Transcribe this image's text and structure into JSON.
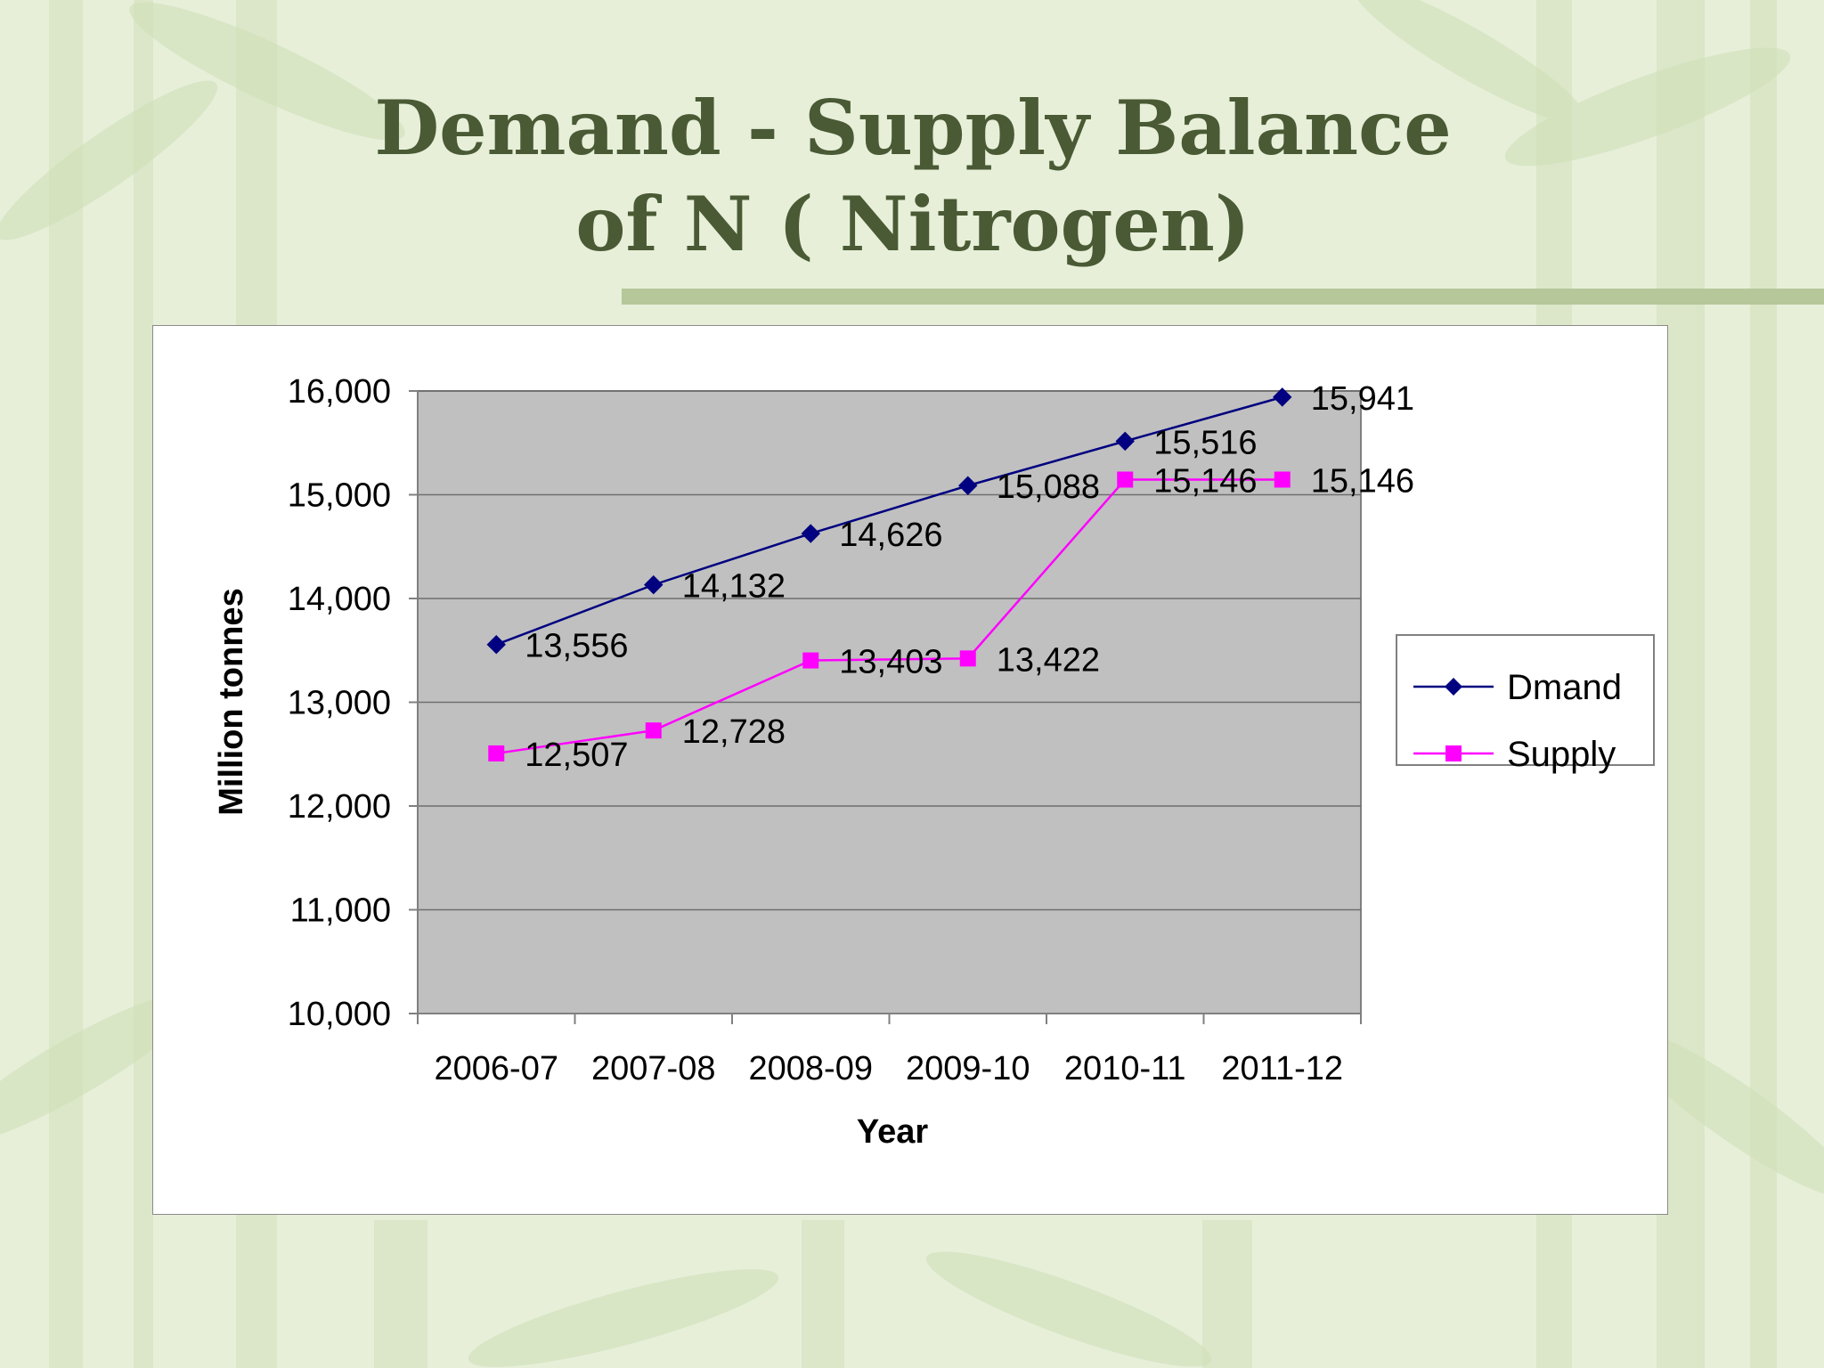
{
  "slide": {
    "title_line1": "Demand - Supply Balance",
    "title_line2": "of N ( Nitrogen)"
  },
  "colors": {
    "background": "#e7efd9",
    "title": "#4a5a34",
    "plot_area": "#c0c0c0",
    "demand": "#000080",
    "supply": "#ff00ff"
  },
  "chart_data": {
    "type": "line",
    "title": "",
    "xlabel": "Year",
    "ylabel": "Million tonnes",
    "categories": [
      "2006-07",
      "2007-08",
      "2008-09",
      "2009-10",
      "2010-11",
      "2011-12"
    ],
    "ylim": [
      10000,
      16000
    ],
    "yticks": [
      10000,
      11000,
      12000,
      13000,
      14000,
      15000,
      16000
    ],
    "ytick_labels": [
      "10,000",
      "11,000",
      "12,000",
      "13,000",
      "14,000",
      "15,000",
      "16,000"
    ],
    "grid": true,
    "legend_position": "right",
    "series": [
      {
        "name": "Dmand",
        "marker": "diamond",
        "color": "#000080",
        "values": [
          13556,
          14132,
          14626,
          15088,
          15516,
          15941
        ],
        "labels": [
          "13,556",
          "14,132",
          "14,626",
          "15,088",
          "15,516",
          "15,941"
        ]
      },
      {
        "name": "Supply",
        "marker": "square",
        "color": "#ff00ff",
        "values": [
          12507,
          12728,
          13403,
          13422,
          15146,
          15146
        ],
        "labels": [
          "12,507",
          "12,728",
          "13,403",
          "13,422",
          "15,146",
          "15,146"
        ]
      }
    ]
  }
}
